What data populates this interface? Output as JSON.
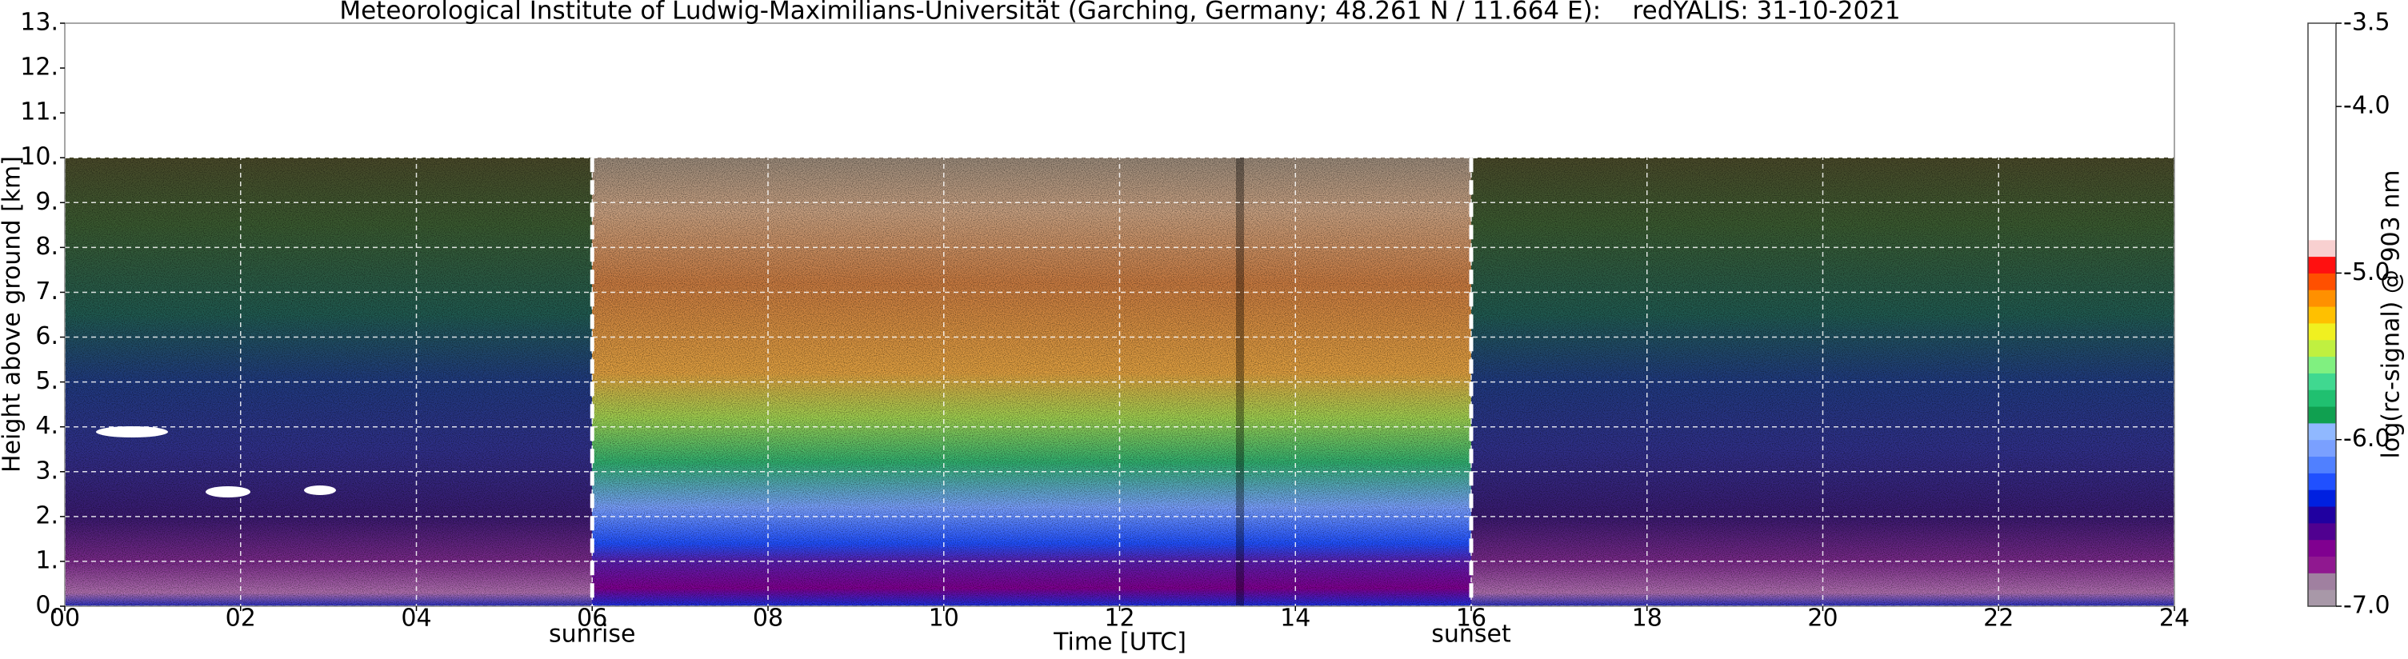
{
  "chart_data": {
    "type": "heatmap",
    "title": "Meteorological Institute of Ludwig-Maximilians-Universität (Garching, Germany; 48.261 N / 11.664 E):    redYALIS: 31-10-2021",
    "x_label": "Time [UTC]",
    "y_label": "Height above ground [km]",
    "colorbar_label": "log(rc-signal) @ 903 nm",
    "xlim": [
      0,
      24
    ],
    "xticks": [
      {
        "value": 0,
        "label": "00"
      },
      {
        "value": 2,
        "label": "02"
      },
      {
        "value": 4,
        "label": "04"
      },
      {
        "value": 6,
        "label": "06"
      },
      {
        "value": 8,
        "label": "08"
      },
      10,
      12,
      14,
      16,
      18,
      20,
      22,
      24
    ],
    "ylim": [
      0,
      13
    ],
    "yticks": [
      {
        "value": 0,
        "label": "0."
      },
      {
        "value": 1,
        "label": "1."
      },
      {
        "value": 2,
        "label": "2."
      },
      {
        "value": 3,
        "label": "3."
      },
      {
        "value": 4,
        "label": "4."
      },
      {
        "value": 5,
        "label": "5."
      },
      {
        "value": 6,
        "label": "6."
      },
      {
        "value": 7,
        "label": "7."
      },
      {
        "value": 8,
        "label": "8."
      },
      {
        "value": 9,
        "label": "9."
      },
      {
        "value": 10,
        "label": "10."
      },
      {
        "value": 11,
        "label": "11."
      },
      {
        "value": 12,
        "label": "12."
      },
      {
        "value": 13,
        "label": "13."
      }
    ],
    "zlim": [
      -7.0,
      -3.5
    ],
    "zticks": [
      {
        "value": -7.0,
        "label": "-7.0"
      },
      {
        "value": -6.0,
        "label": "-6.0"
      },
      {
        "value": -5.0,
        "label": "-5.0"
      },
      {
        "value": -4.0,
        "label": "-4.0"
      },
      -3.5
    ],
    "colormap": [
      "#a898a8",
      "#a080a0",
      "#901890",
      "#800090",
      "#500090",
      "#2000a0",
      "#0020e0",
      "#2050ff",
      "#5080ff",
      "#7aa0ff",
      "#90b8ff",
      "#10a050",
      "#20c070",
      "#40d890",
      "#80f080",
      "#c0f040",
      "#f0f020",
      "#ffc000",
      "#ff9000",
      "#ff5000",
      "#ff1010",
      "#f8d0d0",
      "#ffffff",
      "#ffffff",
      "#ffffff",
      "#ffffff",
      "#ffffff",
      "#ffffff",
      "#ffffff",
      "#ffffff",
      "#ffffff",
      "#ffffff",
      "#ffffff",
      "#ffffff",
      "#ffffff"
    ],
    "grid": true,
    "annotations": [
      {
        "text": "sunrise",
        "x": 6
      },
      {
        "text": "sunset",
        "x": 16
      }
    ]
  }
}
